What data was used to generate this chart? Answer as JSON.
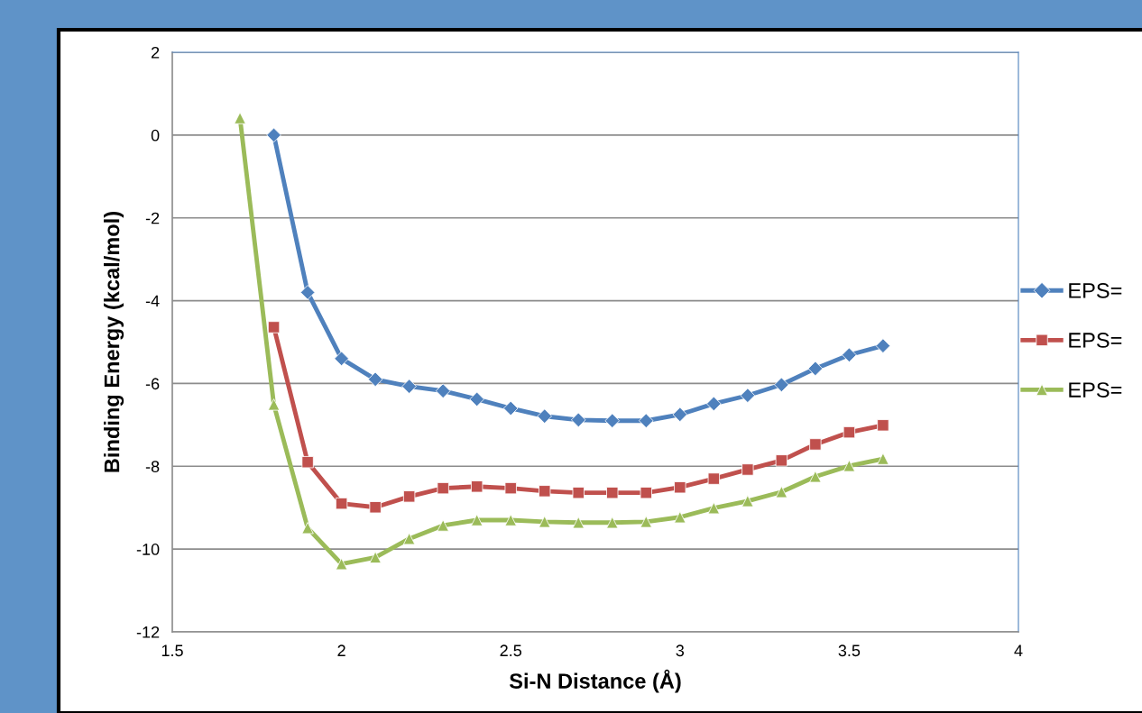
{
  "chart_data": {
    "type": "line",
    "xlabel": "Si-N Distance (Å)",
    "ylabel": "Binding Energy (kcal/mol)",
    "x": [
      1.7,
      1.8,
      1.9,
      2.0,
      2.1,
      2.2,
      2.3,
      2.4,
      2.5,
      2.6,
      2.7,
      2.8,
      2.9,
      3.0,
      3.1,
      3.2,
      3.3,
      3.4,
      3.5,
      3.6
    ],
    "series": [
      {
        "name": "EPS=",
        "color": "#4f81bd",
        "marker": "diamond",
        "values": [
          null,
          0,
          -3.8,
          -5.4,
          -5.9,
          -6.07,
          -6.18,
          -6.38,
          -6.6,
          -6.79,
          -6.88,
          -6.9,
          -6.9,
          -6.75,
          -6.49,
          -6.29,
          -6.03,
          -5.64,
          -5.31,
          -5.09
        ]
      },
      {
        "name": "EPS=",
        "color": "#c0504d",
        "marker": "square",
        "values": [
          null,
          -4.64,
          -7.9,
          -8.9,
          -8.99,
          -8.73,
          -8.53,
          -8.49,
          -8.53,
          -8.6,
          -8.64,
          -8.64,
          -8.64,
          -8.51,
          -8.3,
          -8.08,
          -7.86,
          -7.47,
          -7.18,
          -7.01
        ]
      },
      {
        "name": "EPS=",
        "color": "#9bbb59",
        "marker": "triangle",
        "values": [
          0.41,
          -6.51,
          -9.49,
          -10.36,
          -10.2,
          -9.75,
          -9.43,
          -9.3,
          -9.3,
          -9.34,
          -9.36,
          -9.36,
          -9.34,
          -9.23,
          -9.01,
          -8.84,
          -8.62,
          -8.25,
          -7.99,
          -7.82
        ]
      }
    ],
    "xlim": [
      1.5,
      4
    ],
    "xticks": [
      1.5,
      2,
      2.5,
      3,
      3.5,
      4
    ],
    "ylim": [
      -12,
      2
    ],
    "yticks": [
      -12,
      -10,
      -8,
      -6,
      -4,
      -2,
      0,
      2
    ],
    "grid": "y",
    "legend": "right",
    "line_style": "solid"
  }
}
